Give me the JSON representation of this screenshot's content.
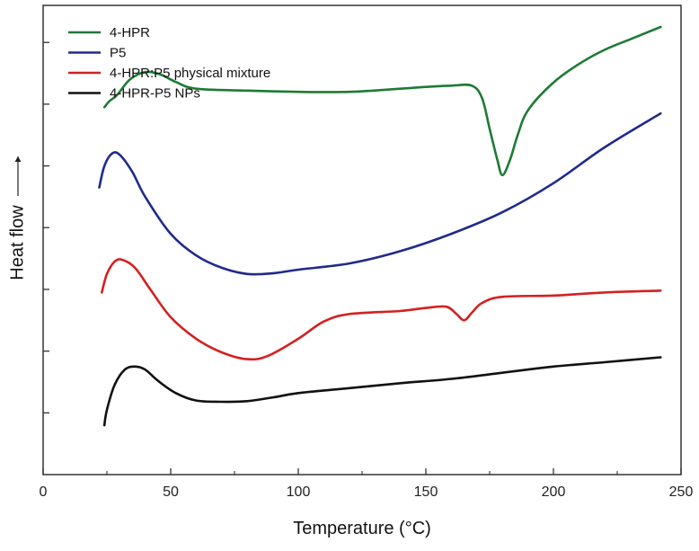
{
  "chart_data": {
    "type": "line",
    "xlabel": "Temperature (°C)",
    "ylabel": "Heat flow",
    "xlim": [
      0,
      250
    ],
    "x_ticks": [
      0,
      50,
      100,
      150,
      200,
      250
    ],
    "y_ticks_labeled": false,
    "grid": false,
    "legend_position": "top-left",
    "series": [
      {
        "name": "4-HPR",
        "color": "#1e7a36",
        "points": [
          [
            24,
            5.95
          ],
          [
            26,
            6.05
          ],
          [
            29,
            6.15
          ],
          [
            34,
            6.4
          ],
          [
            40,
            6.52
          ],
          [
            46,
            6.48
          ],
          [
            52,
            6.36
          ],
          [
            60,
            6.25
          ],
          [
            80,
            6.22
          ],
          [
            100,
            6.2
          ],
          [
            120,
            6.2
          ],
          [
            140,
            6.25
          ],
          [
            150,
            6.28
          ],
          [
            160,
            6.3
          ],
          [
            168,
            6.3
          ],
          [
            172,
            6.1
          ],
          [
            175,
            5.6
          ],
          [
            178,
            5.1
          ],
          [
            180,
            4.85
          ],
          [
            183,
            5.1
          ],
          [
            186,
            5.5
          ],
          [
            190,
            5.9
          ],
          [
            200,
            6.35
          ],
          [
            210,
            6.65
          ],
          [
            220,
            6.88
          ],
          [
            230,
            7.05
          ],
          [
            242,
            7.25
          ]
        ]
      },
      {
        "name": "P5",
        "color": "#202a8c",
        "points": [
          [
            22,
            4.65
          ],
          [
            24,
            5.0
          ],
          [
            27,
            5.2
          ],
          [
            30,
            5.18
          ],
          [
            35,
            4.9
          ],
          [
            40,
            4.5
          ],
          [
            50,
            3.9
          ],
          [
            60,
            3.55
          ],
          [
            70,
            3.35
          ],
          [
            80,
            3.25
          ],
          [
            90,
            3.26
          ],
          [
            100,
            3.32
          ],
          [
            120,
            3.42
          ],
          [
            140,
            3.62
          ],
          [
            160,
            3.9
          ],
          [
            180,
            4.25
          ],
          [
            200,
            4.72
          ],
          [
            220,
            5.3
          ],
          [
            242,
            5.85
          ]
        ]
      },
      {
        "name": "4-HPR:P5 physical mixture",
        "color": "#d42020",
        "points": [
          [
            23,
            2.95
          ],
          [
            25,
            3.25
          ],
          [
            28,
            3.45
          ],
          [
            31,
            3.48
          ],
          [
            36,
            3.35
          ],
          [
            42,
            3.0
          ],
          [
            50,
            2.55
          ],
          [
            60,
            2.2
          ],
          [
            70,
            1.98
          ],
          [
            80,
            1.87
          ],
          [
            88,
            1.92
          ],
          [
            100,
            2.2
          ],
          [
            110,
            2.48
          ],
          [
            120,
            2.6
          ],
          [
            140,
            2.65
          ],
          [
            150,
            2.7
          ],
          [
            158,
            2.72
          ],
          [
            162,
            2.6
          ],
          [
            165,
            2.5
          ],
          [
            168,
            2.62
          ],
          [
            172,
            2.78
          ],
          [
            180,
            2.88
          ],
          [
            200,
            2.9
          ],
          [
            220,
            2.95
          ],
          [
            242,
            2.98
          ]
        ]
      },
      {
        "name": "4-HPR-P5 NPs",
        "color": "#111111",
        "points": [
          [
            24,
            0.8
          ],
          [
            25,
            1.05
          ],
          [
            28,
            1.45
          ],
          [
            32,
            1.7
          ],
          [
            36,
            1.75
          ],
          [
            40,
            1.7
          ],
          [
            45,
            1.52
          ],
          [
            52,
            1.32
          ],
          [
            60,
            1.2
          ],
          [
            70,
            1.18
          ],
          [
            80,
            1.19
          ],
          [
            90,
            1.25
          ],
          [
            100,
            1.32
          ],
          [
            120,
            1.4
          ],
          [
            140,
            1.48
          ],
          [
            160,
            1.55
          ],
          [
            180,
            1.65
          ],
          [
            200,
            1.75
          ],
          [
            220,
            1.82
          ],
          [
            242,
            1.9
          ]
        ]
      }
    ]
  }
}
